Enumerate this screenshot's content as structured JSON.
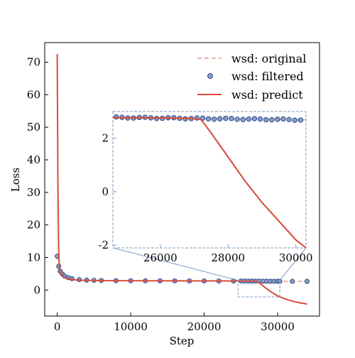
{
  "chart_data": {
    "type": "line",
    "xlabel": "Step",
    "ylabel": "Loss",
    "xlim": [
      -1700,
      35700
    ],
    "ylim": [
      -8.0,
      76.0
    ],
    "xticks": [
      0,
      10000,
      20000,
      30000
    ],
    "yticks": [
      0,
      10,
      20,
      30,
      40,
      50,
      60,
      70
    ],
    "grid": false,
    "legend_position": "top-right",
    "legend": [
      {
        "label": "wsd: original",
        "style": "dashed-line",
        "color": "#e8958a"
      },
      {
        "label": "wsd: filtered",
        "style": "marker",
        "color": "#8a9cc6",
        "edge_color": "#2f4a8c"
      },
      {
        "label": "wsd: predict",
        "style": "solid-line",
        "color": "#d94a38"
      }
    ],
    "series": [
      {
        "name": "wsd: filtered",
        "type": "scatter",
        "x": [
          0,
          200,
          400,
          700,
          1000,
          1500,
          2000,
          3000,
          4000,
          5000,
          6000,
          8000,
          10000,
          12000,
          14000,
          16000,
          18000,
          20000,
          22000,
          24000,
          25000,
          25500,
          26000,
          26500,
          27000,
          27500,
          28000,
          28500,
          29000,
          29500,
          30000,
          30300,
          32000,
          34000
        ],
        "y": [
          10.4,
          7.3,
          5.8,
          4.9,
          4.3,
          3.8,
          3.5,
          3.2,
          3.05,
          2.98,
          2.93,
          2.88,
          2.85,
          2.84,
          2.82,
          2.81,
          2.8,
          2.79,
          2.78,
          2.78,
          2.78,
          2.76,
          2.75,
          2.74,
          2.74,
          2.73,
          2.72,
          2.72,
          2.7,
          2.7,
          2.69,
          2.69,
          2.68,
          2.67
        ]
      },
      {
        "name": "wsd: original",
        "type": "line",
        "x": [
          0,
          200,
          400,
          700,
          1000,
          1500,
          2000,
          3000,
          4000,
          5000,
          6000,
          8000,
          10000,
          12000,
          14000,
          16000,
          18000,
          20000,
          22000,
          24000,
          26000,
          28000,
          30000,
          32000,
          34000
        ],
        "y": [
          10.4,
          7.3,
          5.8,
          4.9,
          4.3,
          3.8,
          3.5,
          3.2,
          3.05,
          2.98,
          2.93,
          2.88,
          2.85,
          2.84,
          2.82,
          2.81,
          2.8,
          2.79,
          2.78,
          2.78,
          2.75,
          2.72,
          2.69,
          2.68,
          2.67
        ]
      },
      {
        "name": "wsd: predict",
        "type": "line",
        "x": [
          0,
          100,
          200,
          300,
          500,
          800,
          1200,
          1800,
          2500,
          3500,
          5000,
          7000,
          10000,
          14000,
          18000,
          22000,
          26000,
          27000,
          27200,
          27500,
          28000,
          28500,
          29000,
          29500,
          30000,
          30300,
          31000,
          32000,
          33000,
          34000
        ],
        "y": [
          72.5,
          30.0,
          12.0,
          7.0,
          5.0,
          4.1,
          3.6,
          3.3,
          3.1,
          3.0,
          2.93,
          2.88,
          2.85,
          2.83,
          2.81,
          2.79,
          2.76,
          2.74,
          2.7,
          2.2,
          1.3,
          0.4,
          -0.4,
          -1.1,
          -1.8,
          -2.1,
          -2.7,
          -3.4,
          -3.9,
          -4.3
        ]
      }
    ],
    "inset": {
      "xlim": [
        24600,
        30300
      ],
      "ylim": [
        -2.1,
        3.0
      ],
      "xticks": [
        26000,
        28000,
        30000
      ],
      "yticks": [
        -2,
        0,
        2
      ]
    }
  }
}
